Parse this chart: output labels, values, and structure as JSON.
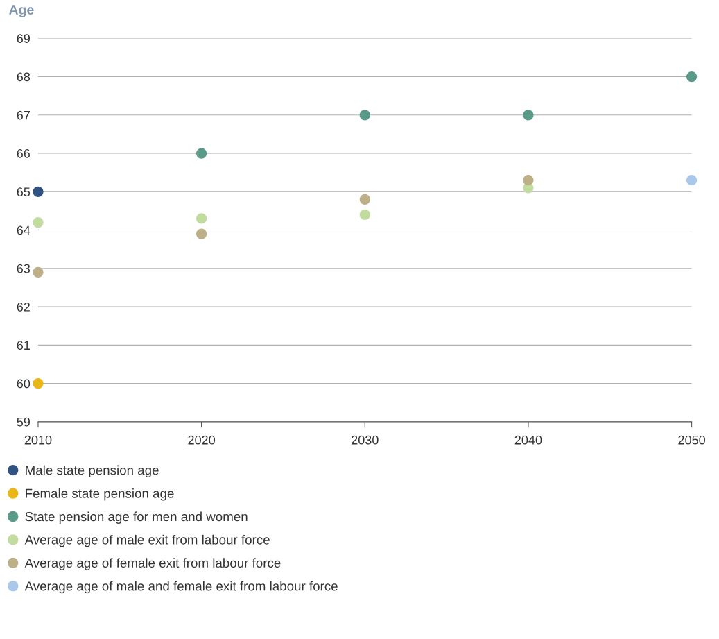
{
  "chart_data": {
    "type": "scatter",
    "ylabel": "Age",
    "xlim": [
      2010,
      2050
    ],
    "xticks": [
      2010,
      2020,
      2030,
      2040,
      2050
    ],
    "ylim": [
      59,
      69
    ],
    "yticks": [
      59,
      60,
      61,
      62,
      63,
      64,
      65,
      66,
      67,
      68,
      69
    ],
    "grid": "y",
    "legend": "bottom",
    "marker": "circle",
    "series": [
      {
        "name": "Male state pension age",
        "color": "#30527f",
        "x": [
          2010
        ],
        "values": [
          65.0
        ]
      },
      {
        "name": "Female state pension age",
        "color": "#e8b617",
        "x": [
          2010
        ],
        "values": [
          60.0
        ]
      },
      {
        "name": "State pension age for men and women",
        "color": "#5a9a88",
        "x": [
          2020,
          2030,
          2040,
          2050
        ],
        "values": [
          66,
          67,
          67,
          68
        ]
      },
      {
        "name": "Average age of male exit from labour force",
        "color": "#c2dca0",
        "x": [
          2010,
          2020,
          2030,
          2040
        ],
        "values": [
          64.2,
          64.3,
          64.4,
          65.1
        ]
      },
      {
        "name": "Average age of female exit from labour force",
        "color": "#bdb089",
        "x": [
          2010,
          2020,
          2030,
          2040
        ],
        "values": [
          62.9,
          63.9,
          64.8,
          65.3
        ]
      },
      {
        "name": "Average age of male and female exit from labour force",
        "color": "#a9c8ea",
        "x": [
          2050
        ],
        "values": [
          65.3
        ]
      }
    ]
  }
}
